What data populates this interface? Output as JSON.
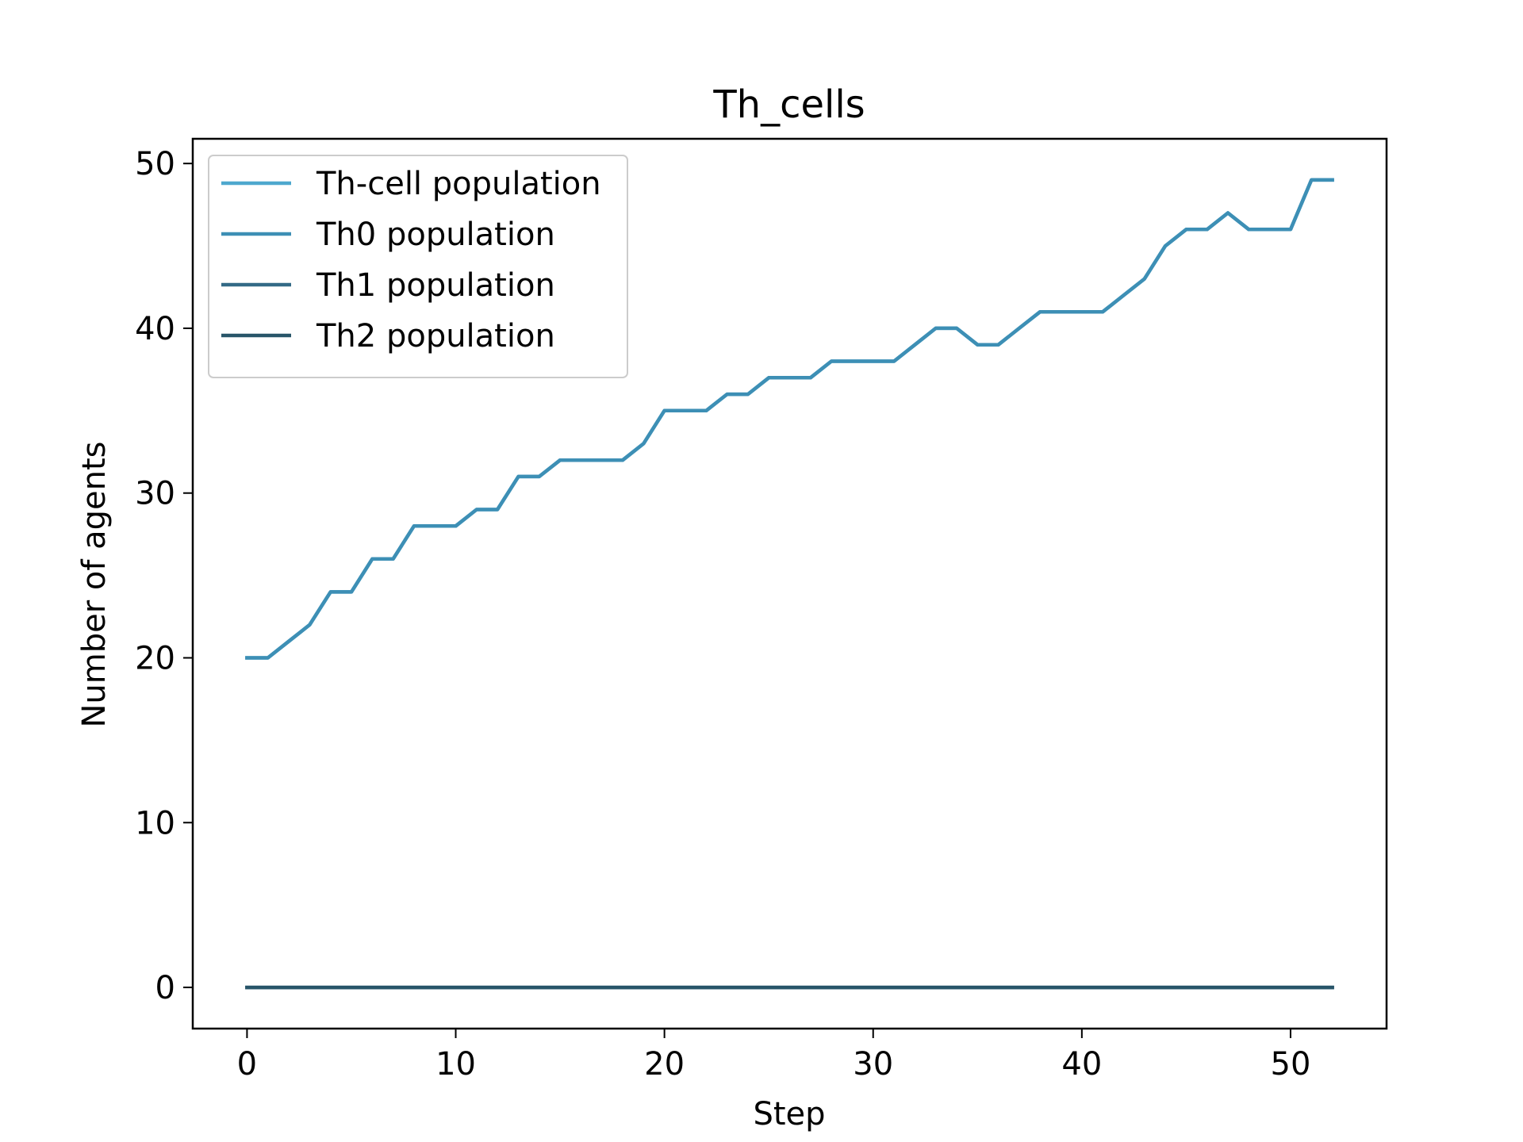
{
  "chart_data": {
    "type": "line",
    "title": "Th_cells",
    "xlabel": "Step",
    "ylabel": "Number of agents",
    "xlim": [
      -2.6,
      54.6
    ],
    "ylim": [
      -2.5,
      51.5
    ],
    "xticks": [
      0,
      10,
      20,
      30,
      40,
      50
    ],
    "yticks": [
      0,
      10,
      20,
      30,
      40,
      50
    ],
    "grid": false,
    "legend_position": "top-left",
    "series": [
      {
        "name": "Th-cell population",
        "color": "#4ea8ce",
        "x": [
          0,
          1,
          2,
          3,
          4,
          5,
          6,
          7,
          8,
          9,
          10,
          11,
          12,
          13,
          14,
          15,
          16,
          17,
          18,
          19,
          20,
          21,
          22,
          23,
          24,
          25,
          26,
          27,
          28,
          29,
          30,
          31,
          32,
          33,
          34,
          35,
          36,
          37,
          38,
          39,
          40,
          41,
          42,
          43,
          44,
          45,
          46,
          47,
          48,
          49,
          50,
          51,
          52
        ],
        "y": [
          20,
          20,
          21,
          22,
          24,
          24,
          26,
          26,
          28,
          28,
          28,
          29,
          29,
          31,
          31,
          32,
          32,
          32,
          32,
          33,
          35,
          35,
          35,
          36,
          36,
          37,
          37,
          37,
          38,
          38,
          38,
          38,
          39,
          40,
          40,
          39,
          39,
          40,
          41,
          41,
          41,
          41,
          42,
          43,
          45,
          46,
          46,
          47,
          46,
          46,
          46,
          49,
          49
        ]
      },
      {
        "name": "Th0 population",
        "color": "#3d8fb5",
        "x": [
          0,
          1,
          2,
          3,
          4,
          5,
          6,
          7,
          8,
          9,
          10,
          11,
          12,
          13,
          14,
          15,
          16,
          17,
          18,
          19,
          20,
          21,
          22,
          23,
          24,
          25,
          26,
          27,
          28,
          29,
          30,
          31,
          32,
          33,
          34,
          35,
          36,
          37,
          38,
          39,
          40,
          41,
          42,
          43,
          44,
          45,
          46,
          47,
          48,
          49,
          50,
          51,
          52
        ],
        "y": [
          20,
          20,
          21,
          22,
          24,
          24,
          26,
          26,
          28,
          28,
          28,
          29,
          29,
          31,
          31,
          32,
          32,
          32,
          32,
          33,
          35,
          35,
          35,
          36,
          36,
          37,
          37,
          37,
          38,
          38,
          38,
          38,
          39,
          40,
          40,
          39,
          39,
          40,
          41,
          41,
          41,
          41,
          42,
          43,
          45,
          46,
          46,
          47,
          46,
          46,
          46,
          49,
          49
        ]
      },
      {
        "name": "Th1 population",
        "color": "#336a86",
        "x": [
          0,
          52
        ],
        "y": [
          0,
          0
        ]
      },
      {
        "name": "Th2 population",
        "color": "#285569",
        "x": [
          0,
          52
        ],
        "y": [
          0,
          0
        ]
      }
    ]
  }
}
